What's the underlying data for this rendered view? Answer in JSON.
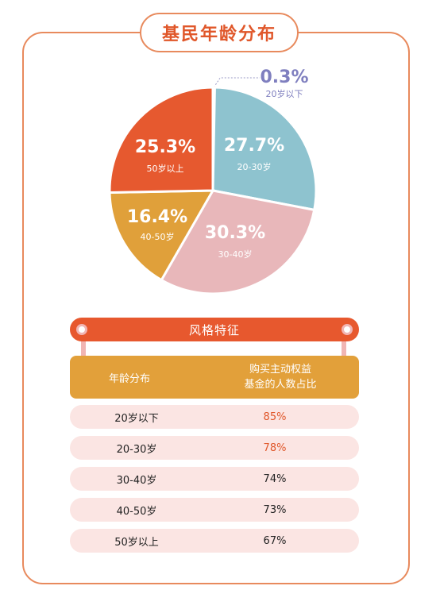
{
  "title": "基民年龄分布",
  "chart_data": {
    "type": "pie",
    "slices": [
      {
        "label": "20岁以下",
        "value": 0.3,
        "display": "0.3%",
        "color": "#7f7fbf"
      },
      {
        "label": "20-30岁",
        "value": 27.7,
        "display": "27.7%",
        "color": "#8ec3cf"
      },
      {
        "label": "30-40岁",
        "value": 30.3,
        "display": "30.3%",
        "color": "#e8b7ba"
      },
      {
        "label": "40-50岁",
        "value": 16.4,
        "display": "16.4%",
        "color": "#e0a03a"
      },
      {
        "label": "50岁以上",
        "value": 25.3,
        "display": "25.3%",
        "color": "#e6592f"
      }
    ]
  },
  "table": {
    "banner": "风格特征",
    "col1_header": "年龄分布",
    "col2_header_line1": "购买主动权益",
    "col2_header_line2": "基金的人数占比",
    "rows": [
      {
        "age": "20岁以下",
        "pct": "85%",
        "highlight": true
      },
      {
        "age": "20-30岁",
        "pct": "78%",
        "highlight": true
      },
      {
        "age": "30-40岁",
        "pct": "74%",
        "highlight": false
      },
      {
        "age": "40-50岁",
        "pct": "73%",
        "highlight": false
      },
      {
        "age": "50岁以上",
        "pct": "67%",
        "highlight": false
      }
    ]
  },
  "colors": {
    "frame": "#e88a5d",
    "accent": "#e0572a",
    "banner": "#e7582e",
    "header": "#e2a03a",
    "row_bg": "#fbe5e3",
    "highlight_text": "#e0572a"
  }
}
